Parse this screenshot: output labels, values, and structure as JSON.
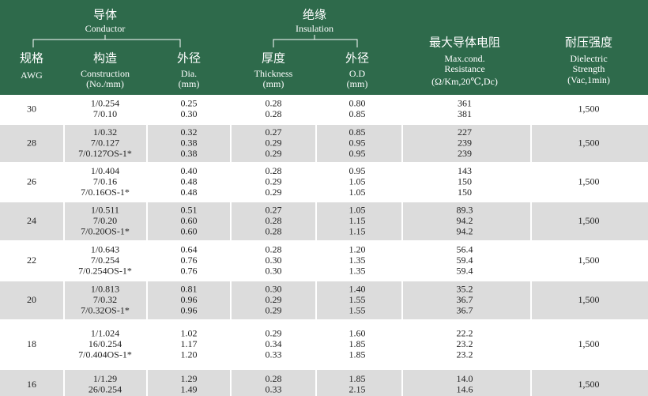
{
  "header": {
    "conductor": {
      "zh": "导体",
      "en": "Conductor"
    },
    "insulation": {
      "zh": "绝缘",
      "en": "Insulation"
    },
    "columns": [
      [
        "规格",
        "AWG"
      ],
      [
        "构造",
        "Construction",
        "(No./mm)"
      ],
      [
        "外径",
        "Dia.",
        "(mm)"
      ],
      [
        "厚度",
        "Thickness",
        "(mm)"
      ],
      [
        "外径",
        "O.D",
        "(mm)"
      ],
      [
        "最大导体电阻",
        "Max.cond.",
        "Resistance",
        "(Ω/Km,20℃,Dc)"
      ],
      [
        "耐压强度",
        "Dielectric",
        "Strength",
        "(Vac,1min)"
      ]
    ]
  },
  "rows": [
    {
      "awg": "30",
      "dielectric": "1,500",
      "lines": [
        [
          "1/0.254",
          "0.25",
          "0.28",
          "0.80",
          "361"
        ],
        [
          "7/0.10",
          "0.30",
          "0.28",
          "0.85",
          "381"
        ]
      ]
    },
    {
      "awg": "28",
      "dielectric": "1,500",
      "lines": [
        [
          "1/0.32",
          "0.32",
          "0.27",
          "0.85",
          "227"
        ],
        [
          "7/0.127",
          "0.38",
          "0.29",
          "0.95",
          "239"
        ],
        [
          "7/0.127OS-1*",
          "0.38",
          "0.29",
          "0.95",
          "239"
        ]
      ]
    },
    {
      "awg": "26",
      "dielectric": "1,500",
      "lines": [
        [
          "1/0.404",
          "0.40",
          "0.28",
          "0.95",
          "143"
        ],
        [
          "7/0.16",
          "0.48",
          "0.29",
          "1.05",
          "150"
        ],
        [
          "7/0.16OS-1*",
          "0.48",
          "0.29",
          "1.05",
          "150"
        ]
      ]
    },
    {
      "awg": "24",
      "dielectric": "1,500",
      "lines": [
        [
          "1/0.511",
          "0.51",
          "0.27",
          "1.05",
          "89.3"
        ],
        [
          "7/0.20",
          "0.60",
          "0.28",
          "1.15",
          "94.2"
        ],
        [
          "7/0.20OS-1*",
          "0.60",
          "0.28",
          "1.15",
          "94.2"
        ]
      ]
    },
    {
      "awg": "22",
      "dielectric": "1,500",
      "lines": [
        [
          "1/0.643",
          "0.64",
          "0.28",
          "1.20",
          "56.4"
        ],
        [
          "7/0.254",
          "0.76",
          "0.30",
          "1.35",
          "59.4"
        ],
        [
          "7/0.254OS-1*",
          "0.76",
          "0.30",
          "1.35",
          "59.4"
        ]
      ]
    },
    {
      "awg": "20",
      "dielectric": "1,500",
      "lines": [
        [
          "1/0.813",
          "0.81",
          "0.30",
          "1.40",
          "35.2"
        ],
        [
          "7/0.32",
          "0.96",
          "0.29",
          "1.55",
          "36.7"
        ],
        [
          "7/0.32OS-1*",
          "0.96",
          "0.29",
          "1.55",
          "36.7"
        ]
      ]
    },
    {
      "awg": "18",
      "dielectric": "1,500",
      "lines": [
        [
          "1/1.024",
          "1.02",
          "0.29",
          "1.60",
          "22.2"
        ],
        [
          "16/0.254",
          "1.17",
          "0.34",
          "1.85",
          "23.2"
        ],
        [
          "7/0.404OS-1*",
          "1.20",
          "0.33",
          "1.85",
          "23.2"
        ]
      ]
    },
    {
      "awg": "16",
      "dielectric": "1,500",
      "lines": [
        [
          "1/1.29",
          "1.29",
          "0.28",
          "1.85",
          "14.0"
        ],
        [
          "26/0.254",
          "1.49",
          "0.33",
          "2.15",
          "14.6"
        ]
      ]
    }
  ]
}
